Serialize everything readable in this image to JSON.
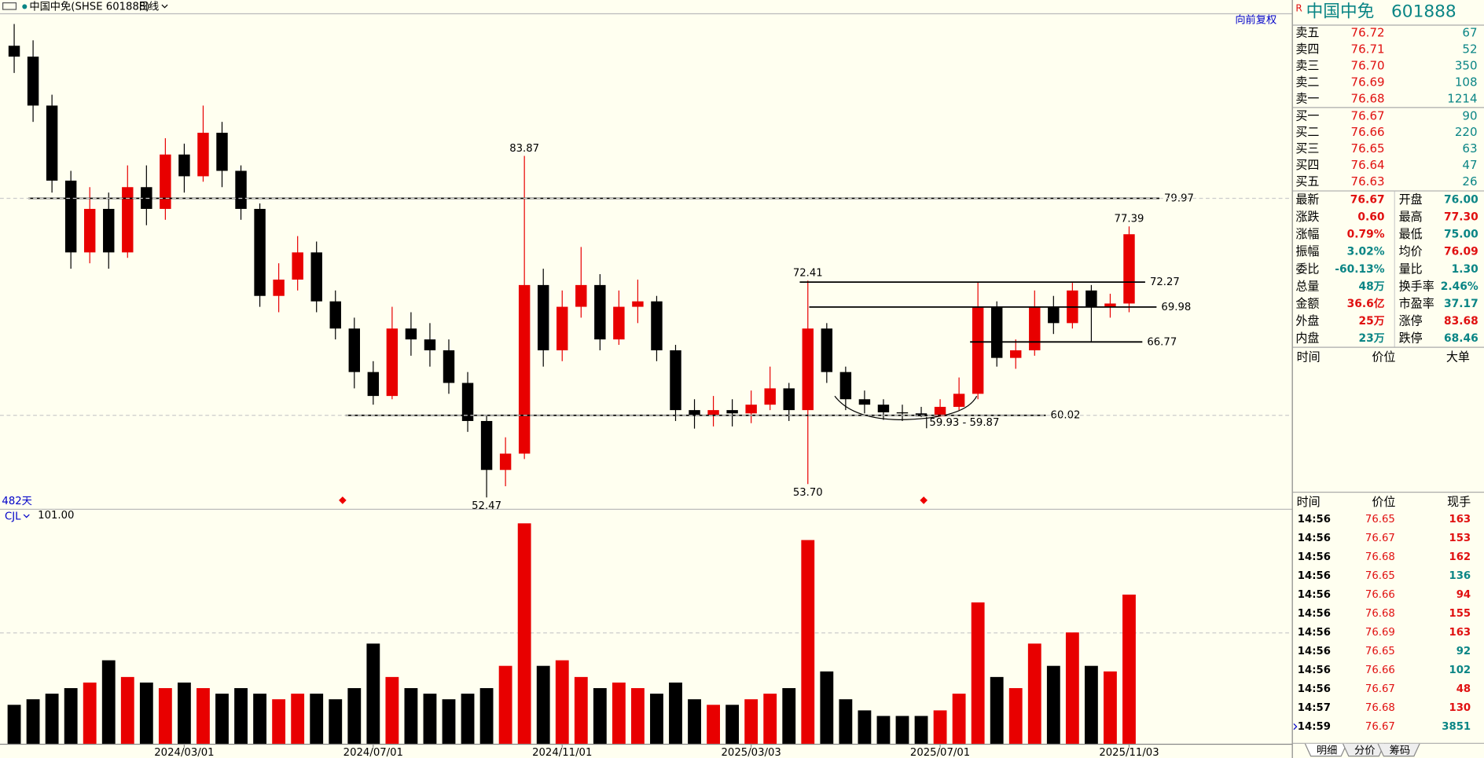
{
  "header": {
    "title": "中国中免(SHSE 601888)",
    "period": "日线",
    "adjust": "向前复权"
  },
  "chart_data": {
    "type": "candlestick",
    "categories": [
      null,
      null,
      null,
      null,
      null,
      null,
      null,
      null,
      null,
      "2024/03/01",
      null,
      null,
      null,
      null,
      null,
      null,
      null,
      null,
      null,
      "2024/07/01",
      null,
      null,
      null,
      null,
      null,
      null,
      null,
      null,
      null,
      "2024/11/01",
      null,
      null,
      null,
      null,
      null,
      null,
      null,
      null,
      null,
      "2025/03/03",
      null,
      null,
      null,
      null,
      null,
      null,
      null,
      null,
      null,
      "2025/07/01",
      null,
      null,
      null,
      null,
      null,
      null,
      null,
      null,
      null,
      "2025/11/03"
    ],
    "open": [
      94,
      93,
      88.5,
      81.6,
      75,
      79,
      75,
      81,
      79,
      84,
      82,
      86,
      82.5,
      79,
      71,
      72.5,
      75,
      70.5,
      68,
      64,
      61.8,
      68,
      67,
      66,
      63,
      59.5,
      55,
      56.5,
      72,
      66,
      70,
      72,
      67,
      70,
      70.5,
      66,
      60.5,
      60,
      60.5,
      60.2,
      61,
      62.5,
      60.5,
      68,
      64,
      61.5,
      61,
      60.3,
      60.2,
      59.93,
      60.8,
      62,
      70,
      65.3,
      66,
      70,
      68.5,
      71.5,
      70,
      70.3
    ],
    "high": [
      96,
      94.5,
      89.5,
      82.5,
      81,
      80.5,
      83,
      83,
      85.5,
      85,
      88.5,
      87,
      83,
      79.5,
      74,
      76.5,
      76,
      71.5,
      69,
      65,
      70,
      69.5,
      68.5,
      67,
      64,
      60,
      58,
      83.87,
      73.5,
      71.5,
      75.5,
      73,
      71.5,
      72.5,
      71,
      66.5,
      61.5,
      61.8,
      61.5,
      62.3,
      64.5,
      63,
      72.41,
      68.5,
      64.5,
      62.3,
      61.5,
      61,
      60.8,
      61.5,
      63.5,
      72.27,
      70.5,
      67,
      71.5,
      71,
      72.2,
      72,
      71.2,
      77.39
    ],
    "low": [
      91.5,
      87,
      80.5,
      73.5,
      74,
      73.5,
      74.5,
      77.5,
      78,
      80.5,
      81.5,
      81,
      78,
      70,
      69.5,
      71.5,
      69.5,
      67,
      62.5,
      61,
      61.5,
      65.5,
      64.5,
      62,
      58.5,
      52.47,
      53.5,
      56,
      64.5,
      65,
      69,
      66,
      66.5,
      68.5,
      65,
      59.5,
      58.8,
      59,
      59,
      59.3,
      60.5,
      59.5,
      53.7,
      63,
      60.5,
      60.2,
      59.6,
      59.5,
      59.87,
      59.9,
      60.5,
      61.5,
      64.5,
      64.3,
      65.5,
      67.5,
      68,
      66.77,
      69,
      69.5
    ],
    "close": [
      93,
      88.5,
      81.6,
      75,
      79,
      75,
      81,
      79,
      84,
      82,
      86,
      82.5,
      79,
      71,
      72.5,
      75,
      70.5,
      68,
      64,
      61.8,
      68,
      67,
      66,
      63,
      59.5,
      55,
      56.5,
      72,
      66,
      70,
      72,
      67,
      70,
      70.5,
      66,
      60.5,
      60,
      60.5,
      60.2,
      61,
      62.5,
      60.5,
      68,
      64,
      61.5,
      61,
      60.3,
      60.2,
      59.93,
      60.8,
      62,
      70,
      65.3,
      66,
      70,
      68.5,
      71.5,
      70,
      70.3,
      76.67
    ],
    "volume": [
      35,
      40,
      45,
      50,
      55,
      75,
      60,
      55,
      50,
      55,
      50,
      45,
      50,
      45,
      40,
      45,
      45,
      40,
      50,
      90,
      60,
      50,
      45,
      40,
      45,
      50,
      70,
      198,
      70,
      75,
      60,
      50,
      55,
      50,
      45,
      55,
      40,
      35,
      35,
      40,
      45,
      50,
      183,
      65,
      40,
      30,
      25,
      25,
      25,
      30,
      45,
      127,
      60,
      50,
      90,
      70,
      100,
      70,
      65,
      134
    ],
    "color_up": "#e80000",
    "color_down": "#000000",
    "ylim": [
      51.6,
      96.9
    ],
    "volume_ylim": [
      0,
      200
    ],
    "hlines": [
      79.97,
      72.27,
      69.98,
      66.77,
      60.02
    ],
    "price_labels": [
      83.87,
      72.41,
      77.39,
      52.47,
      {
        "value": 53.7,
        "label": "53.70"
      }
    ],
    "range_label": "59.93 - 59.87",
    "days_label": "482天",
    "indicator": "CJL",
    "indicator_value": "101.00"
  },
  "quote": {
    "flag": "R",
    "name": "中国中免",
    "code": "601888",
    "book": [
      [
        "卖五",
        "76.72",
        "67"
      ],
      [
        "卖四",
        "76.71",
        "52"
      ],
      [
        "卖三",
        "76.70",
        "350"
      ],
      [
        "卖二",
        "76.69",
        "108"
      ],
      [
        "卖一",
        "76.68",
        "1214"
      ],
      [
        "买一",
        "76.67",
        "90"
      ],
      [
        "买二",
        "76.66",
        "220"
      ],
      [
        "买三",
        "76.65",
        "63"
      ],
      [
        "买四",
        "76.64",
        "47"
      ],
      [
        "买五",
        "76.63",
        "26"
      ]
    ],
    "stats": [
      [
        "最新",
        "76.67",
        "开盘",
        "76.00"
      ],
      [
        "涨跌",
        "0.60",
        "最高",
        "77.30"
      ],
      [
        "涨幅",
        "0.79%",
        "最低",
        "75.00"
      ],
      [
        "振幅",
        "3.02%",
        "均价",
        "76.09"
      ],
      [
        "委比",
        "-60.13%",
        "量比",
        "1.30"
      ],
      [
        "总量",
        "48万",
        "换手率",
        "2.46%"
      ],
      [
        "金额",
        "36.6亿",
        "市盈率",
        "37.17"
      ],
      [
        "外盘",
        "25万",
        "涨停",
        "83.68"
      ],
      [
        "内盘",
        "23万",
        "跌停",
        "68.46"
      ]
    ],
    "big_header": [
      "时间",
      "价位",
      "大单"
    ],
    "trades_header": [
      "时间",
      "价位",
      "现手"
    ],
    "trades": [
      [
        "14:56",
        "76.65",
        "163"
      ],
      [
        "14:56",
        "76.67",
        "153"
      ],
      [
        "14:56",
        "76.68",
        "162"
      ],
      [
        "14:56",
        "76.65",
        "136"
      ],
      [
        "14:56",
        "76.66",
        "94"
      ],
      [
        "14:56",
        "76.68",
        "155"
      ],
      [
        "14:56",
        "76.69",
        "163"
      ],
      [
        "14:56",
        "76.65",
        "92"
      ],
      [
        "14:56",
        "76.66",
        "102"
      ],
      [
        "14:56",
        "76.67",
        "48"
      ],
      [
        "14:57",
        "76.68",
        "130"
      ],
      [
        "14:59",
        "76.67",
        "3851"
      ]
    ],
    "tabs": [
      "明细",
      "分价",
      "筹码"
    ]
  }
}
